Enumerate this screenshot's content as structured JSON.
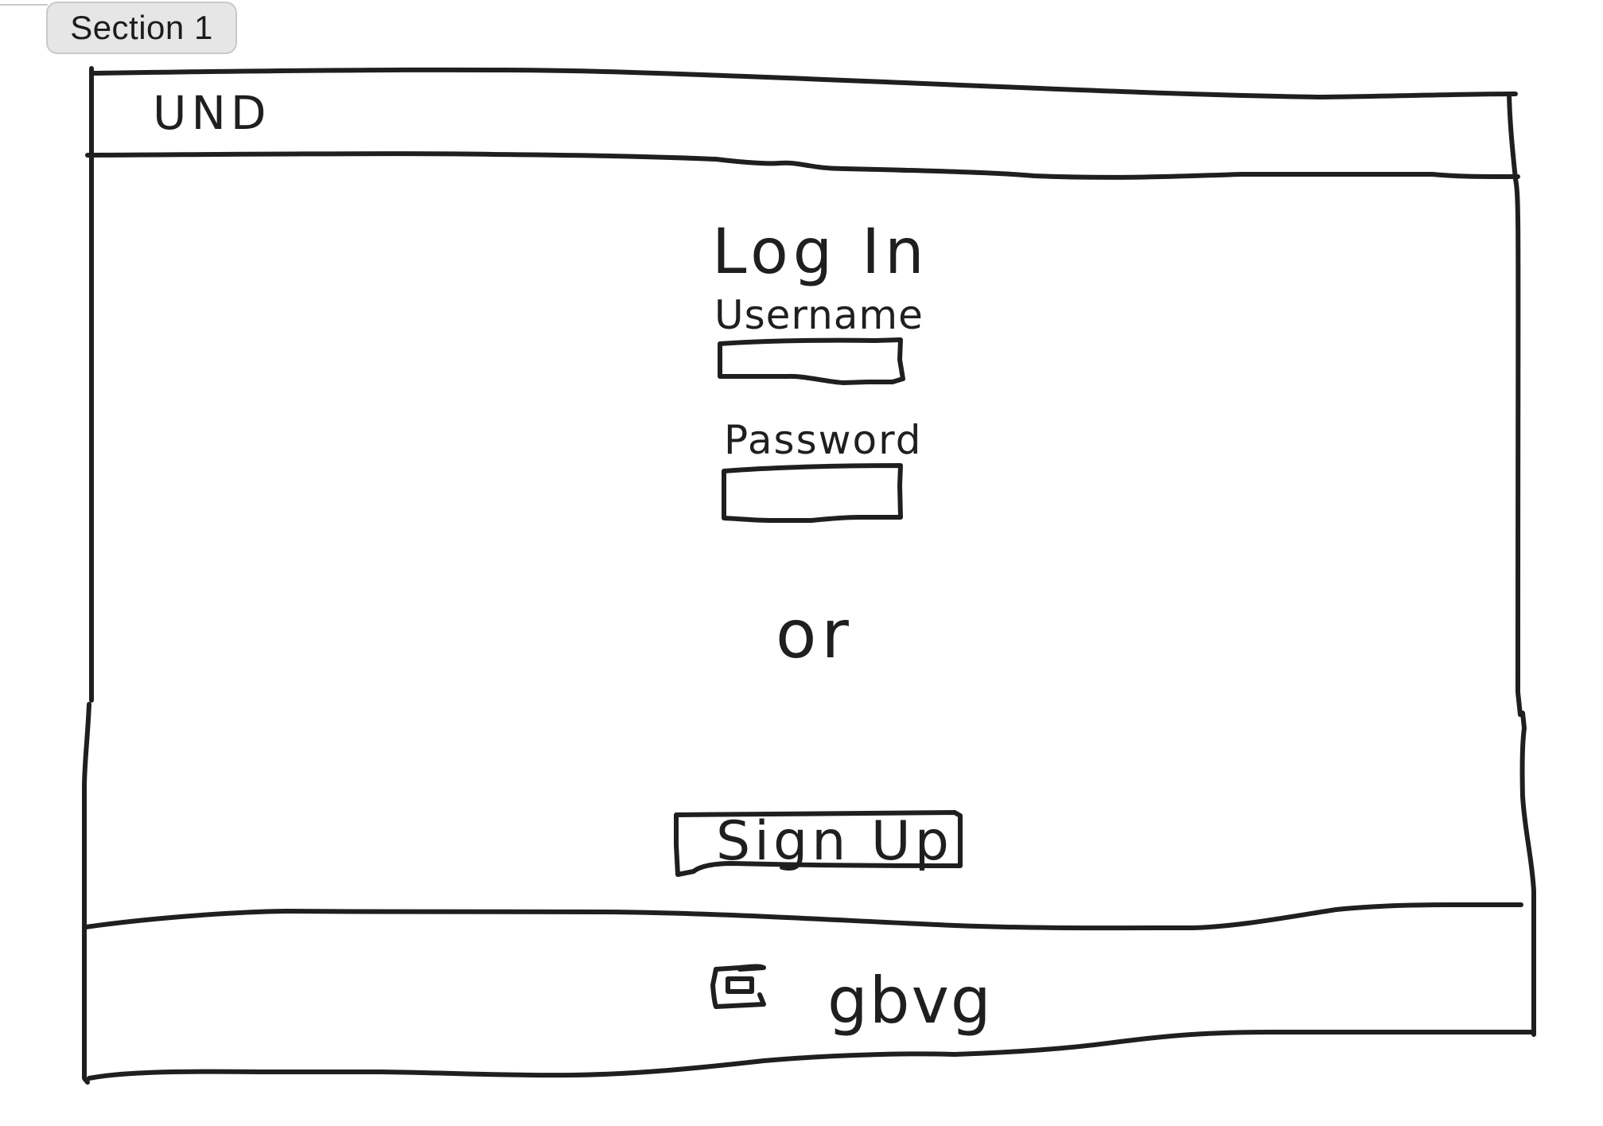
{
  "canvas": {
    "section_label": "Section 1"
  },
  "wireframe": {
    "header": {
      "logo_text": "UND"
    },
    "login": {
      "title": "Log In",
      "username_label": "Username",
      "username_value": "",
      "password_label": "Password",
      "password_value": ""
    },
    "divider_text": "or",
    "signup_button_label": "Sign Up",
    "footer": {
      "text": "gbvg"
    }
  }
}
